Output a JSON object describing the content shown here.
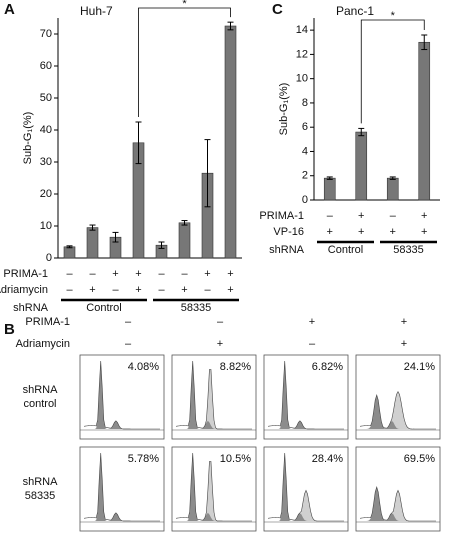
{
  "chart_data": [
    {
      "type": "bar",
      "panel": "A",
      "title": "Huh-7",
      "y_label": "Sub-G₁(%)",
      "values": [
        3.5,
        9.5,
        6.5,
        36,
        4,
        11,
        26.5,
        72.5
      ],
      "errors": [
        0.3,
        0.8,
        1.5,
        6.5,
        1,
        0.7,
        10.5,
        1.2
      ],
      "color": "#777777",
      "ylim": [
        0,
        75
      ],
      "yticks": [
        0,
        10,
        20,
        30,
        40,
        50,
        60,
        70
      ],
      "conditions": [
        {
          "name": "PRIMA-1",
          "values": [
            "–",
            "–",
            "+",
            "+",
            "–",
            "–",
            "+",
            "+"
          ]
        },
        {
          "name": "Adriamycin",
          "values": [
            "–",
            "+",
            "–",
            "+",
            "–",
            "+",
            "–",
            "+"
          ]
        }
      ],
      "group_label": "shRNA",
      "groups": [
        "Control",
        "58335"
      ],
      "significance": "*"
    },
    {
      "type": "bar",
      "panel": "C",
      "title": "Panc-1",
      "y_label": "Sub-G₁(%)",
      "values": [
        1.8,
        5.6,
        1.8,
        13
      ],
      "errors": [
        0.1,
        0.3,
        0.1,
        0.6
      ],
      "color": "#777777",
      "ylim": [
        0,
        15
      ],
      "yticks": [
        0,
        2,
        4,
        6,
        8,
        10,
        12,
        14
      ],
      "conditions": [
        {
          "name": "PRIMA-1",
          "values": [
            "–",
            "+",
            "–",
            "+"
          ]
        },
        {
          "name": "VP-16",
          "values": [
            "+",
            "+",
            "+",
            "+"
          ]
        }
      ],
      "group_label": "shRNA",
      "groups": [
        "Control",
        "58335"
      ],
      "significance": "*"
    }
  ],
  "flow_panel": {
    "panel": "B",
    "conditions": [
      {
        "name": "PRIMA-1",
        "values": [
          "–",
          "–",
          "+",
          "+"
        ]
      },
      {
        "name": "Adriamycin",
        "values": [
          "–",
          "+",
          "–",
          "+"
        ]
      }
    ],
    "rows": [
      {
        "label": [
          "shRNA",
          "control"
        ],
        "percentages": [
          "4.08%",
          "8.82%",
          "6.82%",
          "24.1%"
        ]
      },
      {
        "label": [
          "shRNA",
          "58335"
        ],
        "percentages": [
          "5.78%",
          "10.5%",
          "28.4%",
          "69.5%"
        ]
      }
    ]
  }
}
